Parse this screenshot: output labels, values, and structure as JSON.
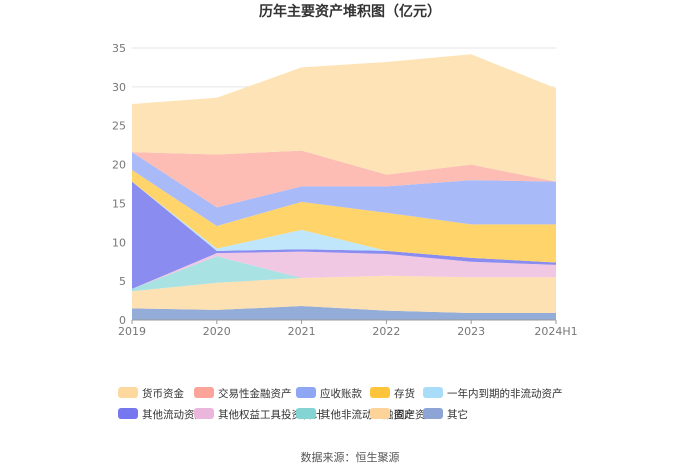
{
  "chart_data": {
    "type": "area",
    "title": "历年主要资产堆积图（亿元）",
    "source": "数据来源：恒生聚源",
    "categories": [
      "2019",
      "2020",
      "2021",
      "2022",
      "2023",
      "2024H1"
    ],
    "ylim": [
      0,
      35
    ],
    "yticks": [
      0,
      5,
      10,
      15,
      20,
      25,
      30,
      35
    ],
    "stacked": true,
    "series": [
      {
        "name": "其它",
        "color": "#94add8",
        "values": [
          1.5,
          1.3,
          1.8,
          1.2,
          0.9,
          0.9
        ]
      },
      {
        "name": "固定资产",
        "color": "#fde1b3",
        "values": [
          2.2,
          3.5,
          3.6,
          4.5,
          4.6,
          4.6
        ]
      },
      {
        "name": "其他非流动金融资产",
        "color": "#a8e2e2",
        "values": [
          0.3,
          3.4,
          0.0,
          0.0,
          0.0,
          0.0
        ]
      },
      {
        "name": "其他权益工具投资合计",
        "color": "#f0c8e4",
        "values": [
          0.0,
          0.4,
          3.4,
          2.8,
          2.0,
          1.6
        ]
      },
      {
        "name": "其他流动资产",
        "color": "#8a8cf0",
        "values": [
          13.8,
          0.3,
          0.3,
          0.4,
          0.5,
          0.3
        ]
      },
      {
        "name": "一年内到期的非流动资产",
        "color": "#bfe6fb",
        "values": [
          0.0,
          0.3,
          2.5,
          0.0,
          0.0,
          0.0
        ]
      },
      {
        "name": "存货",
        "color": "#fed46b",
        "values": [
          1.5,
          2.9,
          3.6,
          4.9,
          4.3,
          4.9
        ]
      },
      {
        "name": "应收账款",
        "color": "#a9baf8",
        "values": [
          2.3,
          2.4,
          2.0,
          3.4,
          5.7,
          5.5
        ]
      },
      {
        "name": "交易性金融资产",
        "color": "#fdbdb5",
        "values": [
          0.0,
          6.8,
          4.6,
          1.5,
          2.0,
          0.0
        ]
      },
      {
        "name": "货币资金",
        "color": "#fde3b5",
        "values": [
          6.2,
          7.3,
          10.7,
          14.5,
          14.2,
          12.0
        ]
      }
    ],
    "legend": {
      "position": "bottom",
      "rows": [
        [
          {
            "label": "货币资金",
            "color": "#fdd9a0"
          },
          {
            "label": "交易性金融资产",
            "color": "#fca39a"
          },
          {
            "label": "应收账款",
            "color": "#8fa6f4"
          },
          {
            "label": "存货",
            "color": "#fdc43c"
          },
          {
            "label": "一年内到期的非流动资产",
            "color": "#a8dcf8"
          }
        ],
        [
          {
            "label": "其他流动资产",
            "color": "#7677ee"
          },
          {
            "label": "其他权益工具投资合计",
            "color": "#ebb6dc"
          },
          {
            "label": "其他非流动金融资产",
            "color": "#84d4d4"
          },
          {
            "label": "固定资产",
            "color": "#fdd39a"
          },
          {
            "label": "其它",
            "color": "#8ca5d6"
          }
        ]
      ]
    }
  }
}
